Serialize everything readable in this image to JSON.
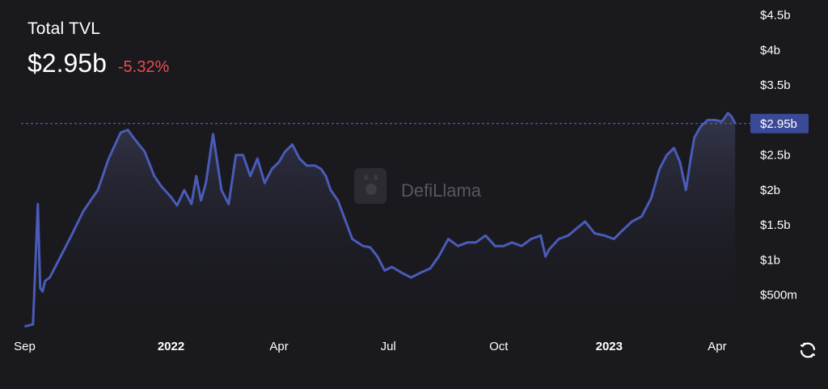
{
  "header": {
    "title": "Total TVL",
    "value": "$2.95b",
    "change": "-5.32%"
  },
  "colors": {
    "background": "#19191e",
    "line": "#4a5bb8",
    "negative": "#ea4d4d",
    "label_bg": "#3b4a96",
    "text": "#ffffff"
  },
  "watermark": {
    "text": "DefiLlama",
    "icon": "llama-logo-icon"
  },
  "refresh_icon": "refresh-icon",
  "chart_data": {
    "type": "area",
    "title": "Total TVL",
    "x_tick_labels": [
      "Sep",
      "2022",
      "Apr",
      "Jul",
      "Oct",
      "2023",
      "Apr"
    ],
    "y_tick_labels": [
      "$500m",
      "$1b",
      "$1.5b",
      "$2b",
      "$2.5b",
      "$3b",
      "$3.5b",
      "$4b",
      "$4.5b"
    ],
    "ylim": [
      0,
      4.6
    ],
    "y_unit": "billion USD",
    "current_value_label": "$2.95b",
    "current_value": 2.95,
    "x": [
      "2021-09-01",
      "2021-09-08",
      "2021-09-12",
      "2021-09-14",
      "2021-09-16",
      "2021-09-18",
      "2021-09-22",
      "2021-10-01",
      "2021-10-10",
      "2021-10-20",
      "2021-11-01",
      "2021-11-10",
      "2021-11-20",
      "2021-11-26",
      "2021-12-02",
      "2021-12-10",
      "2021-12-18",
      "2021-12-24",
      "2022-01-01",
      "2022-01-06",
      "2022-01-12",
      "2022-01-18",
      "2022-01-22",
      "2022-01-26",
      "2022-01-30",
      "2022-02-05",
      "2022-02-12",
      "2022-02-18",
      "2022-02-24",
      "2022-03-02",
      "2022-03-08",
      "2022-03-14",
      "2022-03-20",
      "2022-03-26",
      "2022-04-01",
      "2022-04-06",
      "2022-04-12",
      "2022-04-18",
      "2022-04-24",
      "2022-05-01",
      "2022-05-06",
      "2022-05-10",
      "2022-05-14",
      "2022-05-20",
      "2022-06-01",
      "2022-06-10",
      "2022-06-16",
      "2022-06-22",
      "2022-06-28",
      "2022-07-04",
      "2022-07-12",
      "2022-07-20",
      "2022-07-28",
      "2022-08-05",
      "2022-08-12",
      "2022-08-20",
      "2022-08-28",
      "2022-09-05",
      "2022-09-12",
      "2022-09-20",
      "2022-09-28",
      "2022-10-05",
      "2022-10-12",
      "2022-10-20",
      "2022-10-28",
      "2022-11-05",
      "2022-11-09",
      "2022-11-12",
      "2022-11-20",
      "2022-11-28",
      "2022-12-05",
      "2022-12-12",
      "2022-12-20",
      "2022-12-28",
      "2023-01-05",
      "2023-01-12",
      "2023-01-20",
      "2023-01-28",
      "2023-02-05",
      "2023-02-12",
      "2023-02-18",
      "2023-02-24",
      "2023-03-01",
      "2023-03-06",
      "2023-03-10",
      "2023-03-13",
      "2023-03-18",
      "2023-03-24",
      "2023-03-30",
      "2023-04-05",
      "2023-04-10",
      "2023-04-13",
      "2023-04-16"
    ],
    "series": [
      {
        "values": [
          0.05,
          0.08,
          1.8,
          0.6,
          0.55,
          0.7,
          0.75,
          1.05,
          1.35,
          1.7,
          2.0,
          2.45,
          2.82,
          2.86,
          2.72,
          2.55,
          2.2,
          2.05,
          1.9,
          1.78,
          2.0,
          1.8,
          2.2,
          1.85,
          2.1,
          2.8,
          2.0,
          1.8,
          2.5,
          2.5,
          2.2,
          2.45,
          2.1,
          2.3,
          2.4,
          2.55,
          2.65,
          2.45,
          2.35,
          2.35,
          2.3,
          2.2,
          2.0,
          1.85,
          1.3,
          1.2,
          1.18,
          1.05,
          0.85,
          0.9,
          0.82,
          0.75,
          0.82,
          0.88,
          1.05,
          1.3,
          1.2,
          1.25,
          1.25,
          1.35,
          1.2,
          1.2,
          1.25,
          1.2,
          1.3,
          1.35,
          1.05,
          1.15,
          1.3,
          1.35,
          1.45,
          1.55,
          1.38,
          1.35,
          1.3,
          1.42,
          1.55,
          1.62,
          1.88,
          2.3,
          2.5,
          2.6,
          2.4,
          2.0,
          2.45,
          2.75,
          2.9,
          3.0,
          3.0,
          2.98,
          3.1,
          3.05,
          2.95
        ]
      }
    ]
  }
}
